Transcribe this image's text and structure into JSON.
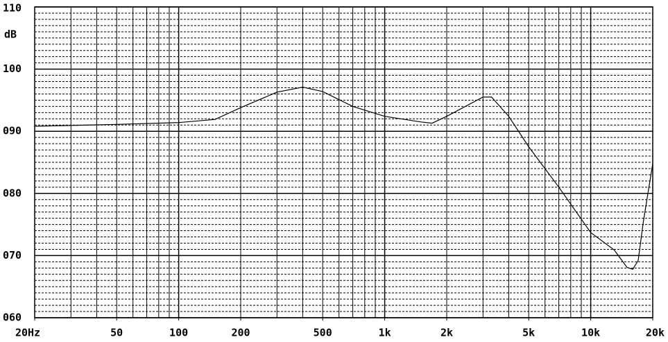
{
  "chart_data": {
    "type": "line",
    "y_unit": "dB",
    "xscale": "log",
    "xlim": [
      20,
      20000
    ],
    "ylim": [
      60,
      110
    ],
    "xticks": [
      {
        "value": 20,
        "label": "20Hz"
      },
      50,
      100,
      200,
      500,
      {
        "value": 1000,
        "label": "1k"
      },
      {
        "value": 2000,
        "label": "2k"
      },
      {
        "value": 5000,
        "label": "5k"
      },
      {
        "value": 10000,
        "label": "10k"
      },
      {
        "value": 20000,
        "label": "20k"
      }
    ],
    "yticks": [
      {
        "value": 60,
        "label": "060"
      },
      {
        "value": 70,
        "label": "070"
      },
      {
        "value": 80,
        "label": "080"
      },
      {
        "value": 90,
        "label": "090"
      },
      100,
      110
    ],
    "grid": true,
    "series": [
      {
        "color": "#000000",
        "x": [
          20,
          50,
          100,
          150,
          200,
          300,
          400,
          500,
          700,
          1000,
          1500,
          1700,
          2000,
          3000,
          3300,
          4000,
          5000,
          7000,
          10000,
          13000,
          15000,
          16000,
          17000,
          18000,
          20000
        ],
        "values": [
          90.8,
          91.1,
          91.4,
          91.9,
          93.8,
          96.3,
          97.1,
          96.4,
          94.0,
          92.4,
          91.5,
          91.3,
          92.4,
          95.5,
          95.5,
          92.4,
          87.5,
          81.0,
          73.7,
          70.9,
          68.1,
          67.8,
          69.2,
          75.4,
          84.8
        ]
      }
    ]
  }
}
